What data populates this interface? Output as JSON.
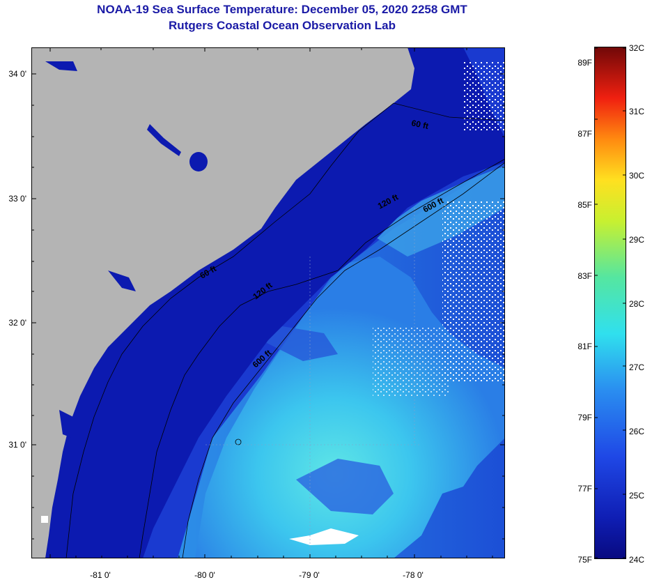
{
  "title": "NOAA-19 Sea Surface Temperature:  December 05, 2020 2258 GMT",
  "subtitle": "Rutgers Coastal Ocean Observation Lab",
  "lat_labels": [
    "34 0'",
    "33 0'",
    "32 0'",
    "31 0'"
  ],
  "lon_labels": [
    "-81 0'",
    "-80 0'",
    "-79 0'",
    "-78 0'"
  ],
  "contour_labels": [
    "60 ft",
    "120 ft",
    "600 ft",
    "60 ft",
    "120 ft",
    "600 ft"
  ],
  "colorbar": {
    "fahrenheit": [
      "89F",
      "87F",
      "85F",
      "83F",
      "81F",
      "79F",
      "77F",
      "75F"
    ],
    "celsius": [
      "32C",
      "31C",
      "30C",
      "29C",
      "28C",
      "27C",
      "26C",
      "25C",
      "24C"
    ]
  },
  "colors": {
    "land": "#b4b4b4",
    "shelf": "#0f1eb4",
    "warm_water": "#3ed2ec",
    "cloud": "#ffffff",
    "title": "#1a1aa6"
  }
}
